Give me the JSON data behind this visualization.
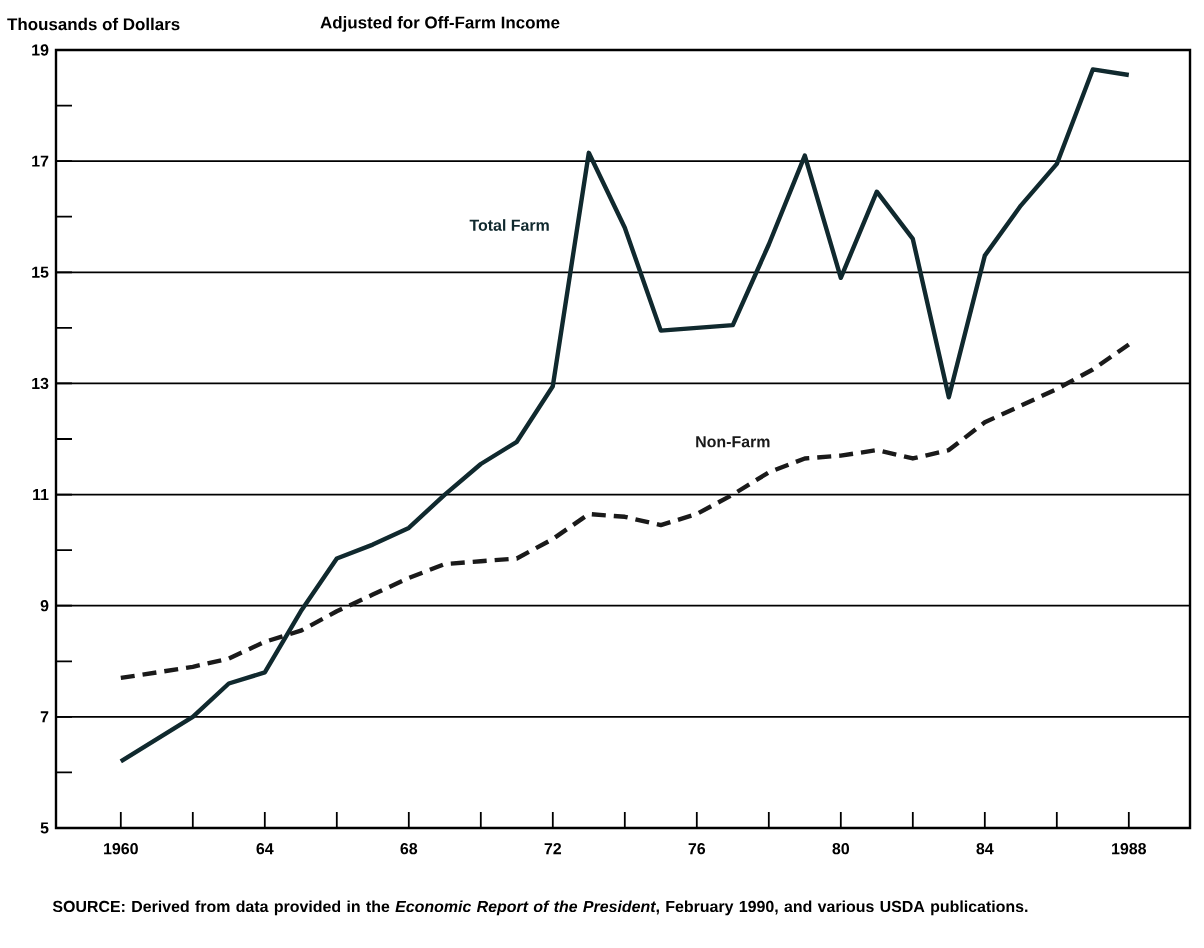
{
  "chart_data": {
    "type": "line",
    "title": "Adjusted for Off-Farm Income",
    "ylabel": "Thousands of Dollars",
    "x": [
      1960,
      1961,
      1962,
      1963,
      1964,
      1965,
      1966,
      1967,
      1968,
      1969,
      1970,
      1971,
      1972,
      1973,
      1974,
      1975,
      1976,
      1977,
      1978,
      1979,
      1980,
      1981,
      1982,
      1983,
      1984,
      1985,
      1986,
      1987,
      1988
    ],
    "series": [
      {
        "name": "Total Farm",
        "color": "#10292e",
        "line_style": "solid",
        "values": [
          6.2,
          6.6,
          7.0,
          7.6,
          7.8,
          8.9,
          9.85,
          10.1,
          10.4,
          11.0,
          11.55,
          11.95,
          12.95,
          17.15,
          15.8,
          13.95,
          14.0,
          14.05,
          15.5,
          17.1,
          14.9,
          16.45,
          15.6,
          12.75,
          15.3,
          16.2,
          16.95,
          18.65,
          18.55
        ]
      },
      {
        "name": "Non-Farm",
        "color": "#1a1a1a",
        "line_style": "dashed",
        "values": [
          7.7,
          7.8,
          7.9,
          8.05,
          8.35,
          8.55,
          8.9,
          9.2,
          9.5,
          9.75,
          9.8,
          9.85,
          10.2,
          10.65,
          10.6,
          10.45,
          10.65,
          11.0,
          11.4,
          11.65,
          11.7,
          11.8,
          11.65,
          11.8,
          12.3,
          12.6,
          12.9,
          13.25,
          13.7
        ]
      }
    ],
    "xlim": [
      1958.2,
      1989.7
    ],
    "xticks": [
      {
        "value": 1960,
        "label": "1960"
      },
      {
        "value": 1962,
        "label": null
      },
      {
        "value": 1964,
        "label": "64"
      },
      {
        "value": 1966,
        "label": null
      },
      {
        "value": 1968,
        "label": "68"
      },
      {
        "value": 1970,
        "label": null
      },
      {
        "value": 1972,
        "label": "72"
      },
      {
        "value": 1974,
        "label": null
      },
      {
        "value": 1976,
        "label": "76"
      },
      {
        "value": 1978,
        "label": null
      },
      {
        "value": 1980,
        "label": "80"
      },
      {
        "value": 1982,
        "label": null
      },
      {
        "value": 1984,
        "label": "84"
      },
      {
        "value": 1986,
        "label": null
      },
      {
        "value": 1988,
        "label": "1988"
      }
    ],
    "ylim": [
      5,
      19
    ],
    "yticks": [
      5,
      {
        "value": 6,
        "label": null
      },
      7,
      {
        "value": 8,
        "label": null
      },
      9,
      {
        "value": 10,
        "label": null
      },
      11,
      {
        "value": 12,
        "label": null
      },
      13,
      {
        "value": 14,
        "label": null
      },
      15,
      {
        "value": 16,
        "label": null
      },
      17,
      {
        "value": 18,
        "label": null
      },
      19
    ],
    "grid": "y",
    "legend": false,
    "marker": "none",
    "annotations": [
      "SOURCE: Derived from data provided in the *Economic Report of the President*, February 1990, and various USDA publications."
    ]
  }
}
